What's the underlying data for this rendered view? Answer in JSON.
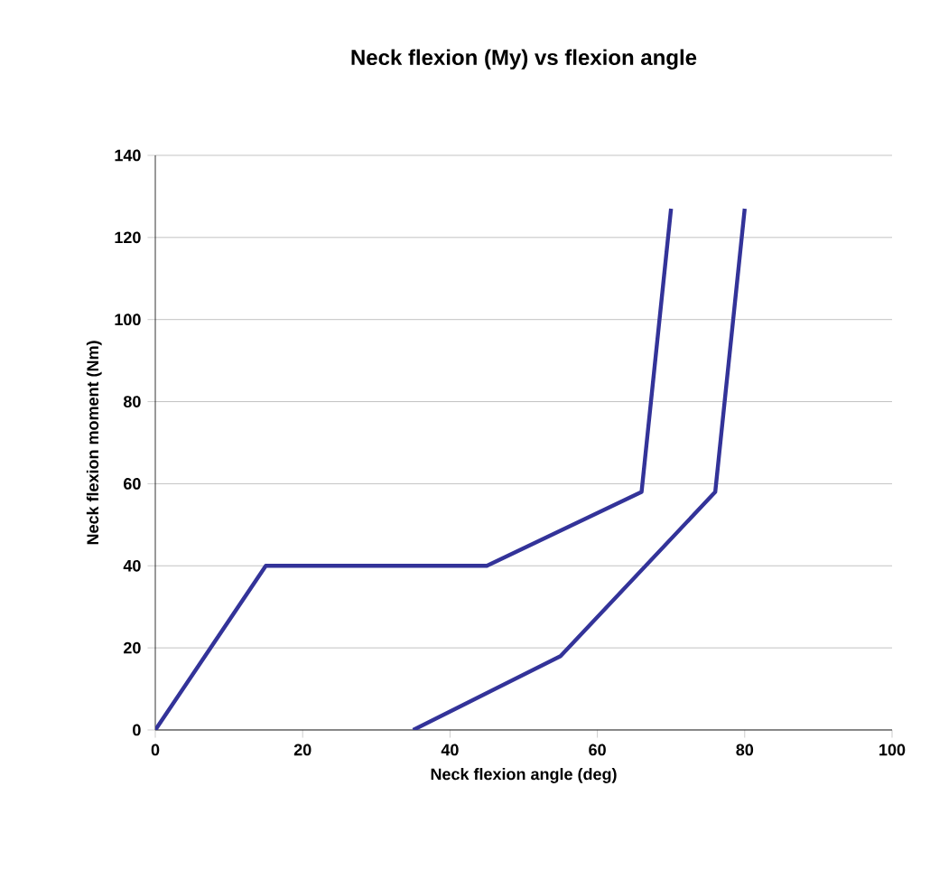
{
  "chart_data": {
    "type": "line",
    "title": "Neck flexion (My) vs flexion angle",
    "xlabel": "Neck flexion angle (deg)",
    "ylabel": "Neck flexion moment (Nm)",
    "series": [
      {
        "color": "#333399",
        "x": [
          0,
          15,
          45,
          66,
          70
        ],
        "values": [
          0,
          40,
          40,
          58,
          127
        ]
      },
      {
        "color": "#333399",
        "x": [
          35,
          55,
          76,
          80
        ],
        "values": [
          0,
          18,
          58,
          127
        ]
      }
    ],
    "xlim": [
      0,
      100
    ],
    "xticks": [
      0,
      20,
      40,
      60,
      80,
      100
    ],
    "ylim": [
      0,
      140
    ],
    "yticks": [
      0,
      20,
      40,
      60,
      80,
      100,
      120,
      140
    ],
    "grid": "y",
    "marker": "none",
    "line_style": "solid"
  }
}
